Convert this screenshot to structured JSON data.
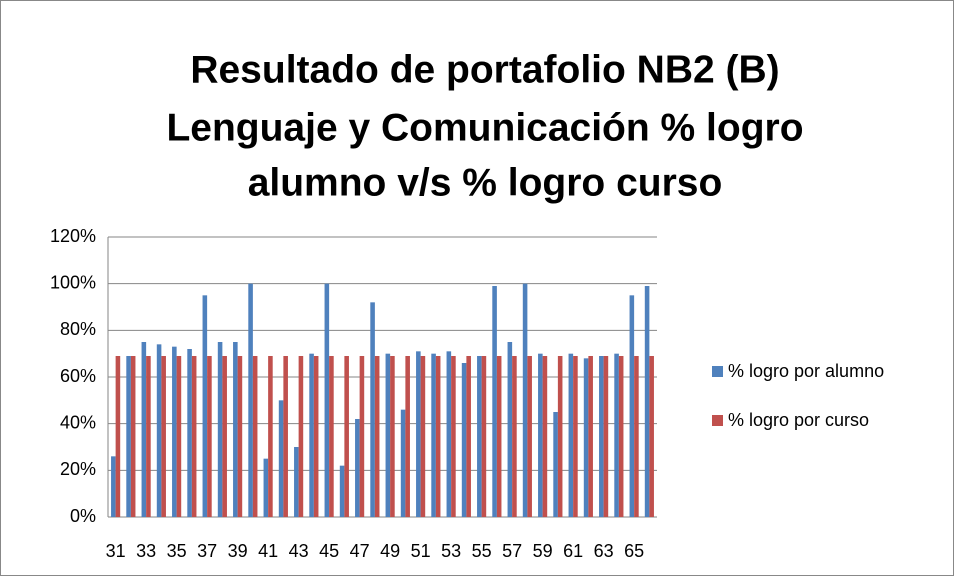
{
  "chart_data": {
    "type": "bar",
    "title": [
      "Resultado de portafolio NB2 (B)",
      "Lenguaje y Comunicación % logro",
      "alumno v/s % logro curso"
    ],
    "categories": [
      "31",
      null,
      "33",
      null,
      "35",
      null,
      "37",
      null,
      "39",
      null,
      "41",
      null,
      "43",
      null,
      "45",
      null,
      "47",
      null,
      "49",
      null,
      "51",
      null,
      "53",
      null,
      "55",
      null,
      "57",
      null,
      "59",
      null,
      "61",
      null,
      "63",
      null,
      "65",
      null
    ],
    "series": [
      {
        "name": "% logro por alumno",
        "color": "#4f81bd",
        "values": [
          26,
          69,
          75,
          74,
          73,
          72,
          95,
          75,
          75,
          100,
          25,
          50,
          30,
          70,
          100,
          22,
          42,
          92,
          70,
          46,
          71,
          70,
          71,
          66,
          69,
          99,
          75,
          100,
          70,
          45,
          70,
          68,
          69,
          70,
          95,
          99
        ]
      },
      {
        "name": "% logro por curso",
        "color": "#c0504d",
        "values": [
          69,
          69,
          69,
          69,
          69,
          69,
          69,
          69,
          69,
          69,
          69,
          69,
          69,
          69,
          69,
          69,
          69,
          69,
          69,
          69,
          69,
          69,
          69,
          69,
          69,
          69,
          69,
          69,
          69,
          69,
          69,
          69,
          69,
          69,
          69,
          69
        ]
      }
    ],
    "ylim": [
      0,
      120
    ],
    "yticks": [
      {
        "value": 0,
        "label": "0%"
      },
      {
        "value": 20,
        "label": "20%"
      },
      {
        "value": 40,
        "label": "40%"
      },
      {
        "value": 60,
        "label": "60%"
      },
      {
        "value": 80,
        "label": "80%"
      },
      {
        "value": 100,
        "label": "100%"
      },
      {
        "value": 120,
        "label": "120%"
      }
    ],
    "grid": true,
    "legend": "right"
  }
}
